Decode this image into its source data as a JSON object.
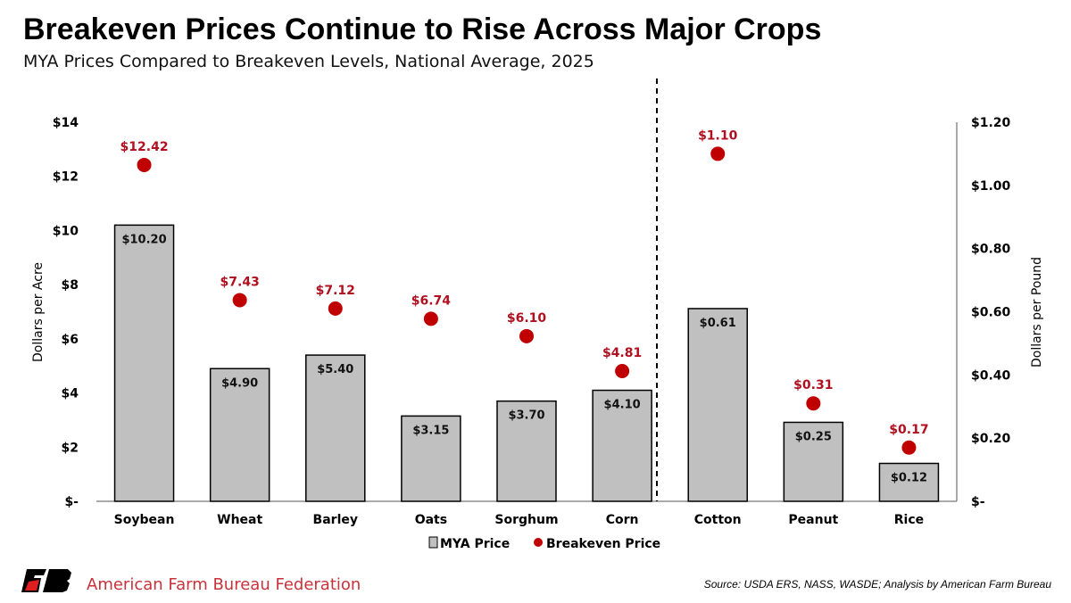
{
  "header": {
    "title": "Breakeven Prices Continue to Rise Across Major Crops",
    "subtitle": "MYA Prices Compared to Breakeven Levels, National Average, 2025"
  },
  "chart_data": {
    "type": "bar",
    "categories": [
      "Soybean",
      "Wheat",
      "Barley",
      "Oats",
      "Sorghum",
      "Corn",
      "Cotton",
      "Peanut",
      "Rice"
    ],
    "series": [
      {
        "name": "MYA Price",
        "type": "bar",
        "values": [
          10.2,
          4.9,
          5.4,
          3.15,
          3.7,
          4.1,
          0.61,
          0.25,
          0.12
        ],
        "labels": [
          "$10.20",
          "$4.90",
          "$5.40",
          "$3.15",
          "$3.70",
          "$4.10",
          "$0.61",
          "$0.25",
          "$0.12"
        ],
        "color": "#c0c0c0"
      },
      {
        "name": "Breakeven Price",
        "type": "scatter",
        "values": [
          12.42,
          7.43,
          7.12,
          6.74,
          6.1,
          4.81,
          1.1,
          0.31,
          0.17
        ],
        "labels": [
          "$12.42",
          "$7.43",
          "$7.12",
          "$6.74",
          "$6.10",
          "$4.81",
          "$1.10",
          "$0.31",
          "$0.17"
        ],
        "color": "#c00000"
      }
    ],
    "axis_assignment": [
      "left",
      "left",
      "left",
      "left",
      "left",
      "left",
      "right",
      "right",
      "right"
    ],
    "left_axis": {
      "label": "Dollars per Acre",
      "ylim": [
        0,
        14
      ],
      "ticks": [
        "$-",
        "$2",
        "$4",
        "$6",
        "$8",
        "$10",
        "$12",
        "$14"
      ]
    },
    "right_axis": {
      "label": "Dollars per Pound",
      "ylim": [
        0,
        1.2
      ],
      "ticks": [
        "$-",
        "$0.20",
        "$0.40",
        "$0.60",
        "$0.80",
        "$1.00",
        "$1.20"
      ]
    },
    "grid": false,
    "legend": {
      "position": "bottom",
      "items": [
        "MYA Price",
        "Breakeven Price"
      ]
    },
    "separator": "dashed line between Corn and Cotton"
  },
  "footer": {
    "organization": "American Farm Bureau Federation",
    "logo_text": "FB",
    "source": "Source: USDA ERS, NASS, WASDE; Analysis by American Farm Bureau"
  }
}
